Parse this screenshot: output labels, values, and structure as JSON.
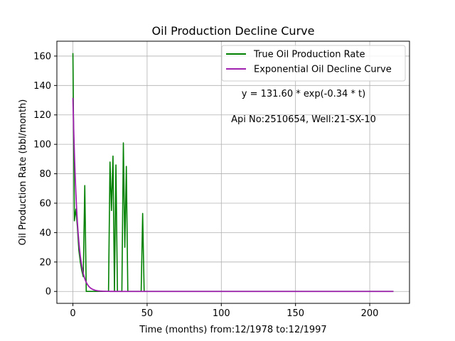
{
  "chart_data": {
    "type": "line",
    "title": "Oil Production Decline Curve",
    "xlabel": "Time (months) from:12/1978 to:12/1997",
    "ylabel": "Oil Production Rate (bbl/month)",
    "xlim": [
      -10.8,
      226.8
    ],
    "ylim": [
      -8.1,
      170.1
    ],
    "xticks": [
      0,
      50,
      100,
      150,
      200
    ],
    "yticks": [
      0,
      20,
      40,
      60,
      80,
      100,
      120,
      140,
      160
    ],
    "grid": true,
    "legend_position": "top-right",
    "annotations": [
      "y = 131.60 * exp(-0.34 * t)",
      "Api No:2510654, Well:21-SX-10"
    ],
    "series": [
      {
        "name": "True Oil Production Rate",
        "color": "#008000",
        "points": [
          [
            0,
            162
          ],
          [
            1,
            48
          ],
          [
            2,
            56
          ],
          [
            3,
            44
          ],
          [
            4,
            28
          ],
          [
            5,
            20
          ],
          [
            6,
            14
          ],
          [
            7,
            10
          ],
          [
            8,
            72
          ],
          [
            9,
            0
          ],
          [
            10,
            0
          ],
          [
            20,
            0
          ],
          [
            24,
            0
          ],
          [
            25,
            88
          ],
          [
            26,
            55
          ],
          [
            27,
            92
          ],
          [
            28,
            0
          ],
          [
            29,
            86
          ],
          [
            30,
            0
          ],
          [
            33,
            0
          ],
          [
            34,
            101
          ],
          [
            35,
            30
          ],
          [
            36,
            85
          ],
          [
            37,
            0
          ],
          [
            46,
            0
          ],
          [
            47,
            53
          ],
          [
            48,
            0
          ],
          [
            216,
            0
          ]
        ]
      },
      {
        "name": "Exponential Oil Decline Curve",
        "color": "#a020b0",
        "a": 131.6,
        "b": 0.34,
        "t_range": [
          0,
          216
        ]
      }
    ]
  }
}
